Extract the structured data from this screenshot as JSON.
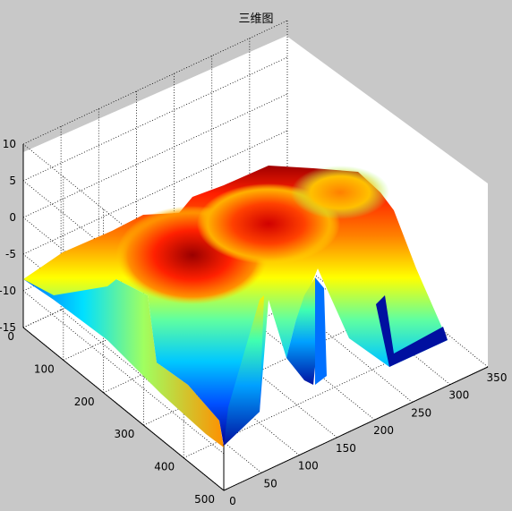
{
  "chart_data": {
    "type": "surface",
    "title": "三维图",
    "xlabel": "",
    "ylabel": "",
    "zlabel": "",
    "xlim": [
      0,
      350
    ],
    "ylim": [
      0,
      500
    ],
    "zlim": [
      -15,
      10
    ],
    "x_ticks": [
      "0",
      "50",
      "100",
      "150",
      "200",
      "250",
      "300",
      "350"
    ],
    "y_ticks": [
      "0",
      "100",
      "200",
      "300",
      "400",
      "500"
    ],
    "z_ticks": [
      "-15",
      "-10",
      "-5",
      "0",
      "5",
      "10"
    ],
    "grid": true,
    "colormap": "jet",
    "view": "3d-default",
    "background": "#c8c8c8",
    "axes_color": "#ffffff"
  }
}
